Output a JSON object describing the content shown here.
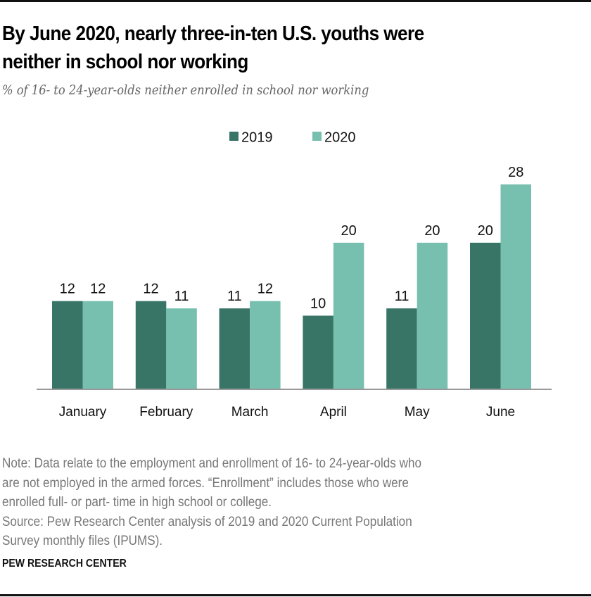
{
  "header": {
    "title_line1": "By June 2020, nearly three-in-ten U.S. youths were",
    "title_line2": "neither in school nor working",
    "subtitle": "% of 16- to 24-year-olds neither enrolled in school nor working"
  },
  "footer": {
    "note_lines": [
      "Note: Data relate to the employment and enrollment of 16- to 24-year-olds who",
      "are not employed in the armed forces. “Enrollment” includes those who were",
      "enrolled full- or part- time in high school or college."
    ],
    "source_lines": [
      "Source: Pew Research Center analysis of 2019 and 2020 Current Population",
      "Survey monthly files (IPUMS)."
    ],
    "brand": "PEW RESEARCH CENTER"
  },
  "chart_data": {
    "type": "bar",
    "title": "By June 2020, nearly three-in-ten U.S. youths were neither in school nor working",
    "subtitle": "% of 16- to 24-year-olds neither enrolled in school nor working",
    "xlabel": "",
    "ylabel": "",
    "categories": [
      "January",
      "February",
      "March",
      "April",
      "May",
      "June"
    ],
    "series": [
      {
        "name": "2019",
        "color": "#387566",
        "values": [
          12,
          12,
          11,
          10,
          11,
          20
        ]
      },
      {
        "name": "2020",
        "color": "#77bfaf",
        "values": [
          12,
          11,
          12,
          20,
          20,
          28
        ]
      }
    ],
    "ylim": [
      0,
      28
    ],
    "grid": false,
    "legend_position": "top-center",
    "data_labels": true,
    "baseline_color": "#999999"
  }
}
